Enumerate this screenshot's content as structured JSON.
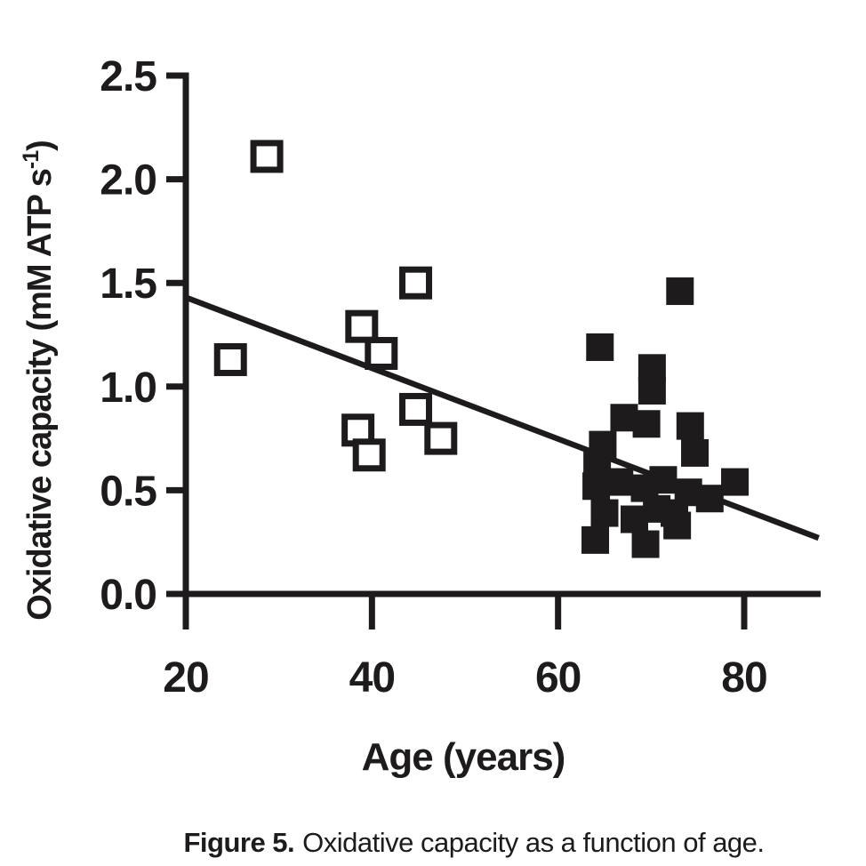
{
  "figure": {
    "caption": {
      "label": "Figure 5.",
      "text": "Oxidative capacity as a function of age."
    }
  },
  "colors": {
    "ink": "#1d1b1b",
    "background": "#ffffff"
  },
  "chart_data": {
    "type": "scatter",
    "title": "",
    "xlabel": "Age (years)",
    "ylabel": "Oxidative capacity (mM ATP s⁻¹)",
    "ylabel_parts": {
      "base": "Oxidative capacity (mM ATP s",
      "superscript": "-1",
      "after": ")"
    },
    "xlim": [
      20,
      88
    ],
    "ylim": [
      0,
      2.5
    ],
    "x_ticks": [
      "20",
      "40",
      "60",
      "80"
    ],
    "y_ticks": [
      "0.0",
      "0.5",
      "1.0",
      "1.5",
      "2.0",
      "2.5"
    ],
    "grid": false,
    "legend": "none",
    "series": [
      {
        "name": "young-open-squares",
        "marker": "open-square",
        "points": [
          [
            24.8,
            1.13
          ],
          [
            28.7,
            2.11
          ],
          [
            38.5,
            0.79
          ],
          [
            38.9,
            1.29
          ],
          [
            39.7,
            0.67
          ],
          [
            41.0,
            1.16
          ],
          [
            44.7,
            1.5
          ],
          [
            44.7,
            0.89
          ],
          [
            47.4,
            0.75
          ]
        ]
      },
      {
        "name": "older-filled-squares",
        "marker": "filled-square",
        "points": [
          [
            64.0,
            0.26
          ],
          [
            64.1,
            0.52
          ],
          [
            64.2,
            0.62
          ],
          [
            64.5,
            1.19
          ],
          [
            64.8,
            0.72
          ],
          [
            65.0,
            0.39
          ],
          [
            66.6,
            0.54
          ],
          [
            67.1,
            0.85
          ],
          [
            68.2,
            0.36
          ],
          [
            69.3,
            0.51
          ],
          [
            69.4,
            0.24
          ],
          [
            69.5,
            0.82
          ],
          [
            70.1,
            1.09
          ],
          [
            70.1,
            0.98
          ],
          [
            70.6,
            0.41
          ],
          [
            71.3,
            0.55
          ],
          [
            72.5,
            0.39
          ],
          [
            72.8,
            0.33
          ],
          [
            73.1,
            1.46
          ],
          [
            74.0,
            0.49
          ],
          [
            74.2,
            0.81
          ],
          [
            74.7,
            0.68
          ],
          [
            76.3,
            0.46
          ],
          [
            79.0,
            0.54
          ]
        ]
      }
    ],
    "trend_line": {
      "x_start": 20,
      "y_start": 1.43,
      "x_end": 88,
      "y_end": 0.27
    }
  }
}
